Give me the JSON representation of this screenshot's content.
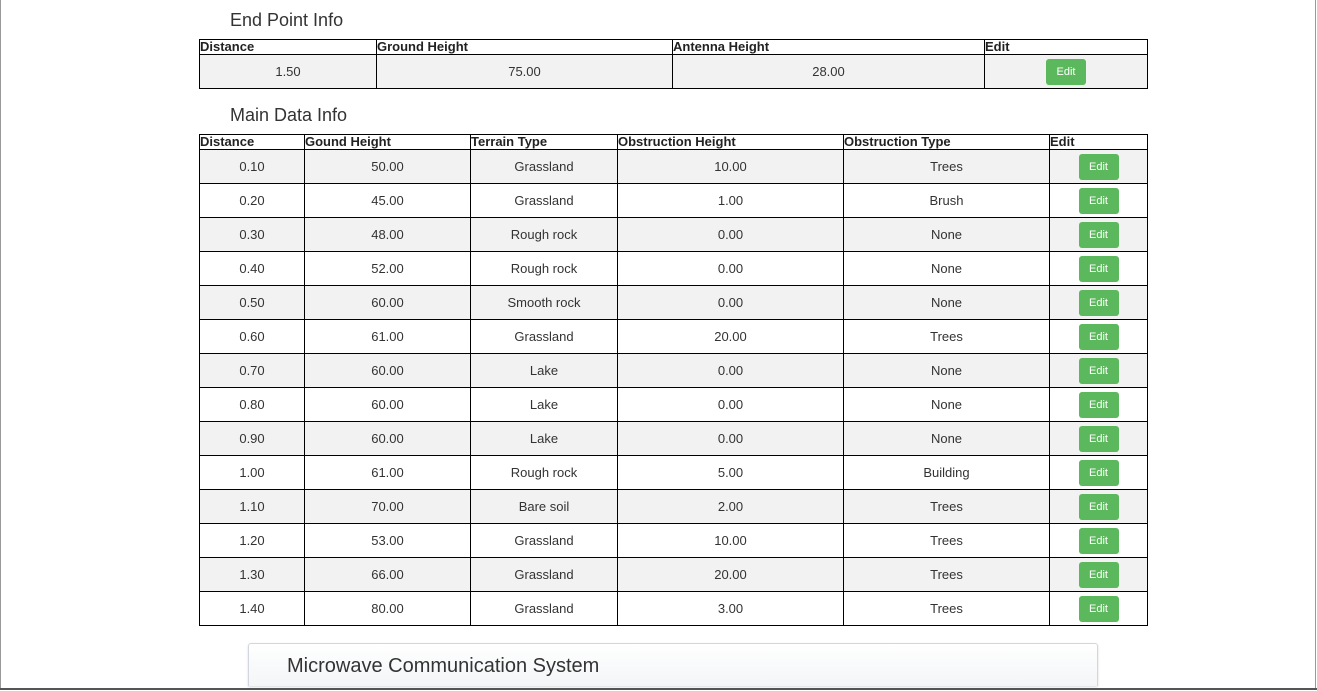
{
  "end_point": {
    "title": "End Point Info",
    "headers": [
      "Distance",
      "Ground Height",
      "Antenna Height",
      "Edit"
    ],
    "row": {
      "distance": "1.50",
      "ground_height": "75.00",
      "antenna_height": "28.00",
      "edit_label": "Edit"
    }
  },
  "main_data": {
    "title": "Main Data Info",
    "headers": [
      "Distance",
      "Gound Height",
      "Terrain Type",
      "Obstruction Height",
      "Obstruction Type",
      "Edit"
    ],
    "edit_label": "Edit",
    "rows": [
      [
        "0.10",
        "50.00",
        "Grassland",
        "10.00",
        "Trees"
      ],
      [
        "0.20",
        "45.00",
        "Grassland",
        "1.00",
        "Brush"
      ],
      [
        "0.30",
        "48.00",
        "Rough rock",
        "0.00",
        "None"
      ],
      [
        "0.40",
        "52.00",
        "Rough rock",
        "0.00",
        "None"
      ],
      [
        "0.50",
        "60.00",
        "Smooth rock",
        "0.00",
        "None"
      ],
      [
        "0.60",
        "61.00",
        "Grassland",
        "20.00",
        "Trees"
      ],
      [
        "0.70",
        "60.00",
        "Lake",
        "0.00",
        "None"
      ],
      [
        "0.80",
        "60.00",
        "Lake",
        "0.00",
        "None"
      ],
      [
        "0.90",
        "60.00",
        "Lake",
        "0.00",
        "None"
      ],
      [
        "1.00",
        "61.00",
        "Rough rock",
        "5.00",
        "Building"
      ],
      [
        "1.10",
        "70.00",
        "Bare soil",
        "2.00",
        "Trees"
      ],
      [
        "1.20",
        "53.00",
        "Grassland",
        "10.00",
        "Trees"
      ],
      [
        "1.30",
        "66.00",
        "Grassland",
        "20.00",
        "Trees"
      ],
      [
        "1.40",
        "80.00",
        "Grassland",
        "3.00",
        "Trees"
      ]
    ]
  },
  "footer": {
    "title": "Microwave Communication System"
  },
  "colors": {
    "edit_button": "#5cb85c",
    "row_alt": "#f2f2f2",
    "border": "#000000"
  }
}
